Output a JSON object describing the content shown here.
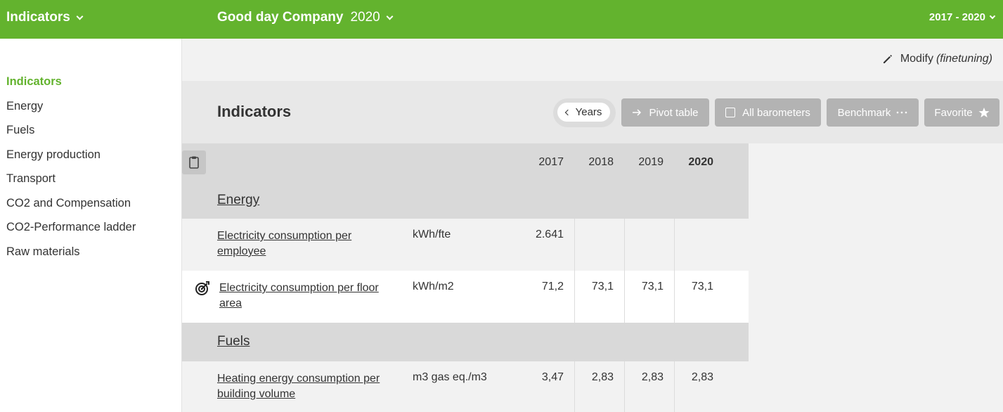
{
  "topbar": {
    "module": "Indicators",
    "company": "Good day Company",
    "year": "2020",
    "period": "2017 - 2020"
  },
  "sidebar": {
    "items": [
      {
        "label": "Indicators",
        "active": true
      },
      {
        "label": "Energy"
      },
      {
        "label": "Fuels"
      },
      {
        "label": "Energy production"
      },
      {
        "label": "Transport"
      },
      {
        "label": "CO2 and Compensation"
      },
      {
        "label": "CO2-Performance ladder"
      },
      {
        "label": "Raw materials"
      }
    ]
  },
  "main": {
    "modify_label": "Modify",
    "modify_sub": "(finetuning)",
    "title": "Indicators",
    "buttons": {
      "years": "Years",
      "pivot": "Pivot table",
      "barometers": "All barometers",
      "benchmark": "Benchmark",
      "favorite": "Favorite"
    }
  },
  "table": {
    "years": [
      "2017",
      "2018",
      "2019",
      "2020"
    ],
    "sections": [
      {
        "title": "Energy",
        "rows": [
          {
            "name": "Electricity consumption per employee",
            "unit": "kWh/fte",
            "values": [
              "2.641",
              "",
              "",
              ""
            ]
          },
          {
            "name": "Electricity consumption per floor area",
            "unit": "kWh/m2",
            "values": [
              "71,2",
              "73,1",
              "73,1",
              "73,1"
            ]
          }
        ]
      },
      {
        "title": "Fuels",
        "rows": [
          {
            "name": "Heating energy consumption per building volume",
            "unit": "m3 gas eq./m3",
            "values": [
              "3,47",
              "2,83",
              "2,83",
              "2,83"
            ]
          }
        ]
      }
    ]
  },
  "colors": {
    "brand_green": "#63b32e",
    "button_grey": "#b3b3b3"
  }
}
